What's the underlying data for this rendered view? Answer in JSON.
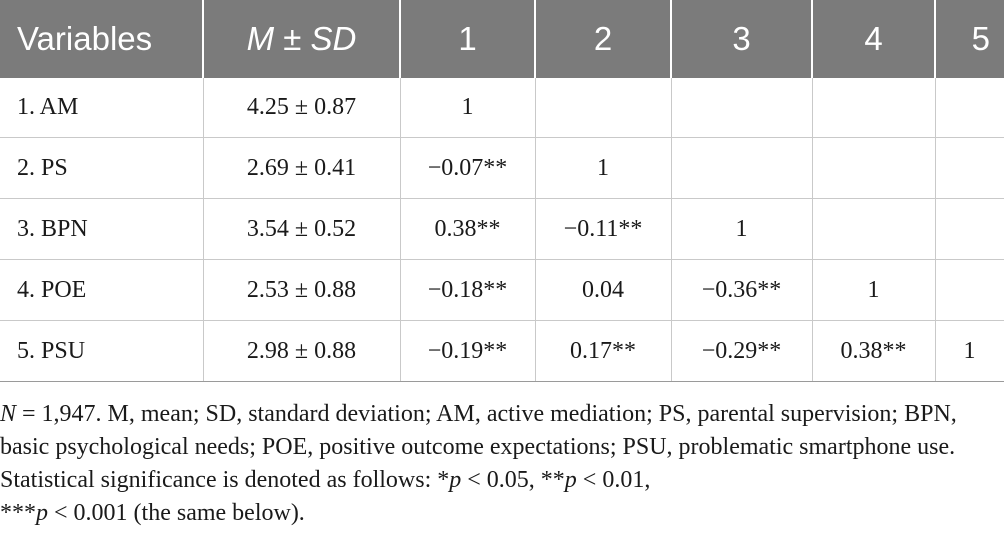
{
  "table": {
    "headers": [
      "Variables",
      "M ± SD",
      "1",
      "2",
      "3",
      "4",
      "5"
    ],
    "rows": [
      [
        "1. AM",
        "4.25 ± 0.87",
        "1",
        "",
        "",
        "",
        ""
      ],
      [
        "2. PS",
        "2.69 ± 0.41",
        "−0.07**",
        "1",
        "",
        "",
        ""
      ],
      [
        "3. BPN",
        "3.54 ± 0.52",
        "0.38**",
        "−0.11**",
        "1",
        "",
        ""
      ],
      [
        "4. POE",
        "2.53 ± 0.88",
        "−0.18**",
        "0.04",
        "−0.36**",
        "1",
        ""
      ],
      [
        "5. PSU",
        "2.98 ± 0.88",
        "−0.19**",
        "0.17**",
        "−0.29**",
        "0.38**",
        "1"
      ]
    ]
  },
  "note": {
    "n_symbol": "N",
    "n_value": " = 1,947. M, mean; SD, standard deviation; AM, active mediation; PS, parental supervision; BPN, basic psychological needs; POE, positive outcome expectations; PSU, problematic smartphone use. Statistical significance is denoted as follows: ",
    "sig1_stars": "*",
    "sig1_p": "p",
    "sig1_rest": " < 0.05, ",
    "sig2_stars": "**",
    "sig2_p": "p",
    "sig2_rest": " < 0.01,",
    "sig3_stars": "***",
    "sig3_p": "p",
    "sig3_rest": " < 0.001 (the same below)."
  },
  "colors": {
    "header_bg": "#7b7b7b",
    "header_text": "#ffffff",
    "grid_line": "#c9c9c9"
  }
}
